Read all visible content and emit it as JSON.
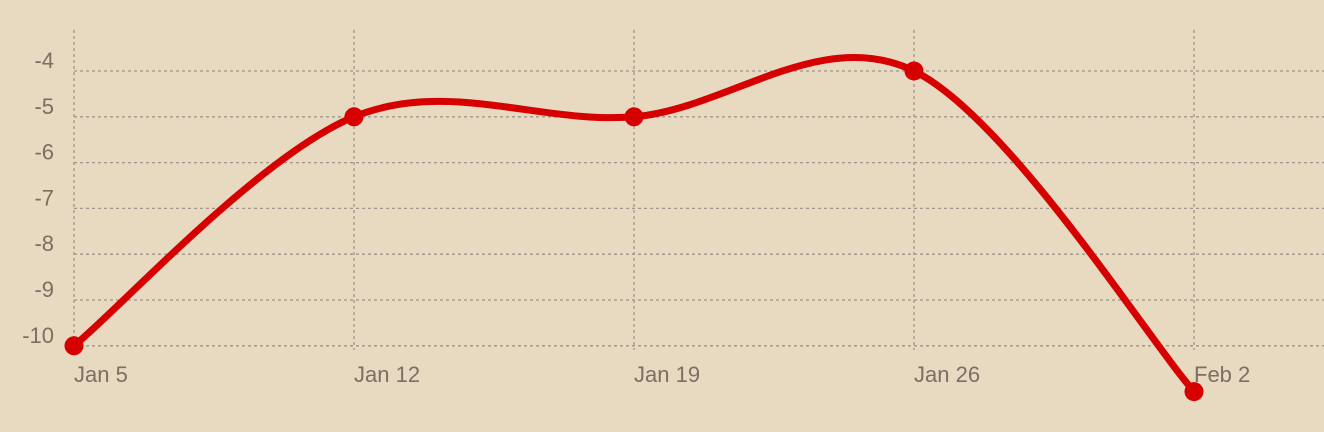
{
  "chart_data": {
    "type": "line",
    "title": "",
    "xlabel": "",
    "ylabel": "",
    "x": [
      "Jan 5",
      "Jan 12",
      "Jan 19",
      "Jan 26",
      "Feb 2"
    ],
    "xticks": [
      "Jan 5",
      "Jan 12",
      "Jan 19",
      "Jan 26",
      "Feb 2"
    ],
    "yticks": [
      -4,
      -5,
      -6,
      -7,
      -8,
      -9,
      -10
    ],
    "ylim": [
      -10,
      -4
    ],
    "series": [
      {
        "values": [
          -10,
          -5,
          -5,
          -4,
          -11
        ],
        "color": "#d60000"
      }
    ],
    "grid": true,
    "gridStyle": "dashed",
    "smooth": true,
    "legend": "none"
  },
  "colors": {
    "background": "#e8d9c1",
    "grid": "#9f958a",
    "ticks": "#7a6f63",
    "line": "#d60000"
  }
}
